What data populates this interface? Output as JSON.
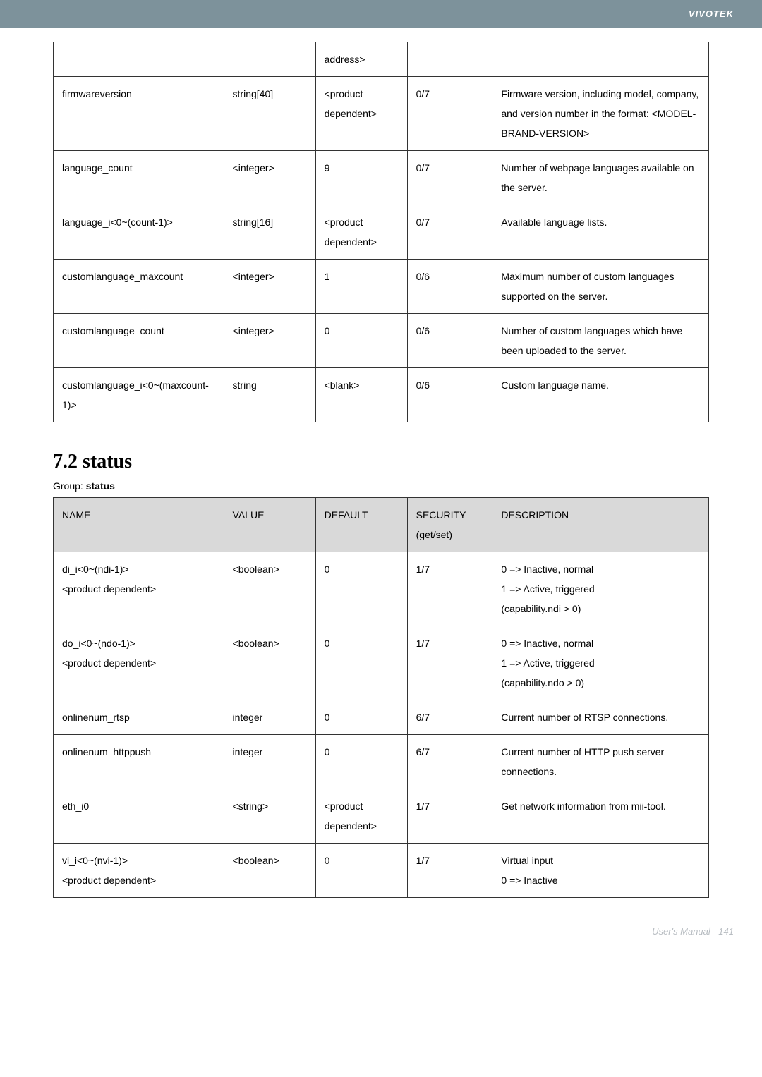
{
  "header": {
    "brand": "VIVOTEK"
  },
  "table1": {
    "rows": [
      {
        "name": "",
        "value": "",
        "default": "address>",
        "sec": "",
        "desc": ""
      },
      {
        "name": "firmwareversion",
        "value": "string[40]",
        "default": "<product dependent>",
        "sec": "0/7",
        "desc": "Firmware version, including model, company, and version number in the format: <MODEL-BRAND-VERSION>"
      },
      {
        "name": "language_count",
        "value": "<integer>",
        "default": "9",
        "sec": "0/7",
        "desc": "Number of webpage languages available on the server."
      },
      {
        "name": "language_i<0~(count-1)>",
        "value": "string[16]",
        "default": "<product dependent>",
        "sec": "0/7",
        "desc": "Available language lists."
      },
      {
        "name": "customlanguage_maxcount",
        "value": "<integer>",
        "default": "1",
        "sec": "0/6",
        "desc": "Maximum number of custom languages supported on the server."
      },
      {
        "name": "customlanguage_count",
        "value": "<integer>",
        "default": "0",
        "sec": "0/6",
        "desc": "Number of custom languages which have been uploaded to the server."
      },
      {
        "name": "customlanguage_i<0~(maxcount-1)>",
        "value": "string",
        "default": "<blank>",
        "sec": "0/6",
        "desc": "Custom language name."
      }
    ]
  },
  "section": {
    "title": "7.2 status",
    "group_label_prefix": "Group: ",
    "group_label_value": "status"
  },
  "table2": {
    "headers": {
      "name": "NAME",
      "value": "VALUE",
      "default": "DEFAULT",
      "security": "SECURITY (get/set)",
      "desc": "DESCRIPTION"
    },
    "rows": [
      {
        "name": "di_i<0~(ndi-1)>\n<product dependent>",
        "value": "<boolean>",
        "default": "0",
        "sec": "1/7",
        "desc": "0 => Inactive, normal\n1 => Active, triggered\n(capability.ndi > 0)"
      },
      {
        "name": "do_i<0~(ndo-1)>\n<product dependent>",
        "value": "<boolean>",
        "default": "0",
        "sec": "1/7",
        "desc": "0 => Inactive, normal\n1 => Active, triggered\n(capability.ndo > 0)"
      },
      {
        "name": "onlinenum_rtsp",
        "value": "integer",
        "default": "0",
        "sec": "6/7",
        "desc": "Current number of RTSP connections."
      },
      {
        "name": "onlinenum_httppush",
        "value": "integer",
        "default": "0",
        "sec": "6/7",
        "desc": "Current number of HTTP push server connections."
      },
      {
        "name": "eth_i0",
        "value": "<string>",
        "default": "<product dependent>",
        "sec": "1/7",
        "desc": "Get network information from mii-tool."
      },
      {
        "name": "vi_i<0~(nvi-1)>\n<product dependent>",
        "value": "<boolean>",
        "default": "0",
        "sec": "1/7",
        "desc": "Virtual input\n0 => Inactive"
      }
    ]
  },
  "footer": {
    "text": "User's Manual - 141"
  }
}
